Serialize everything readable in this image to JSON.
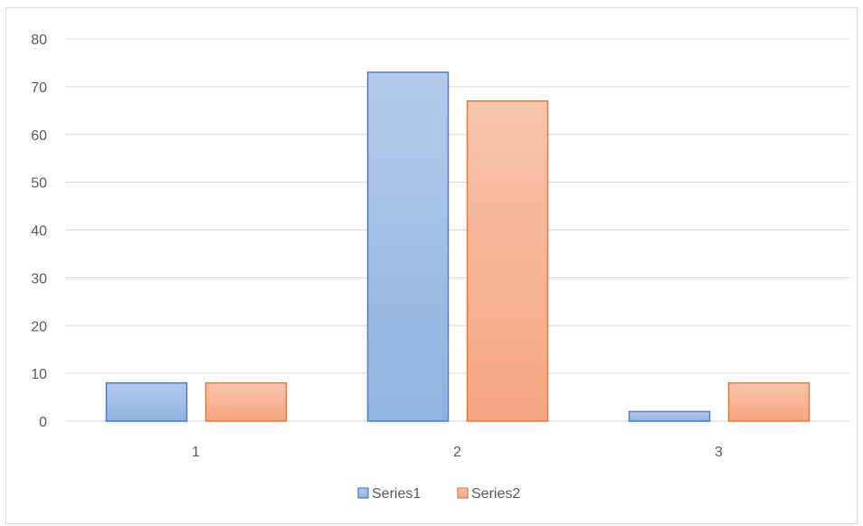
{
  "chart_data": {
    "type": "bar",
    "title": "",
    "xlabel": "",
    "ylabel": "",
    "categories": [
      "1",
      "2",
      "3"
    ],
    "series": [
      {
        "name": "Series1",
        "values": [
          8,
          73,
          2
        ],
        "fill_top": "#b4cbea",
        "fill_bottom": "#8fb3e0",
        "stroke": "#4a7fc6"
      },
      {
        "name": "Series2",
        "values": [
          8,
          67,
          8
        ],
        "fill_top": "#f8c5ad",
        "fill_bottom": "#f4a57f",
        "stroke": "#e8793e"
      }
    ],
    "ylim": [
      0,
      80
    ],
    "yticks": [
      "0",
      "10",
      "20",
      "30",
      "40",
      "50",
      "60",
      "70",
      "80"
    ],
    "grid": true,
    "gridline_color": "#d9d9d9",
    "legend_position": "bottom"
  }
}
